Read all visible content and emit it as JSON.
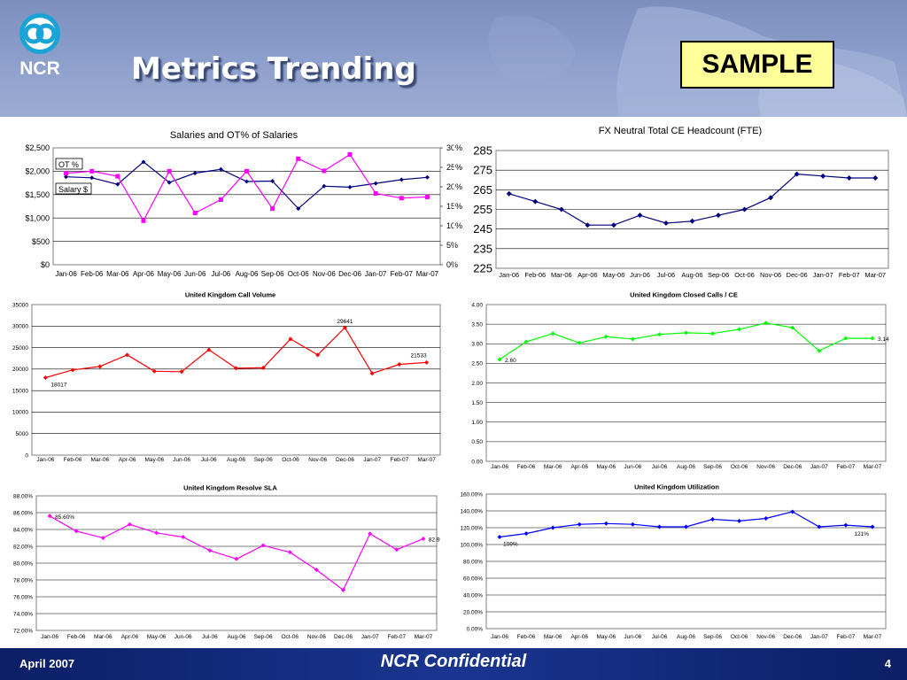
{
  "slide": {
    "title": "Metrics Trending",
    "stamp": "SAMPLE",
    "logo_text": "NCR",
    "footer_left": "April 2007",
    "footer_center": "NCR Confidential",
    "page_number": "4"
  },
  "colors": {
    "navy": "#000080",
    "magenta": "#ff00ff",
    "red": "#ff0000",
    "green": "#00ff00",
    "blue": "#0000ff",
    "footer": "#0c1f66"
  },
  "chart_data": [
    {
      "type": "line",
      "title": "Salaries and OT% of Salaries",
      "categories": [
        "Jan-06",
        "Feb-06",
        "Mar-06",
        "Apr-06",
        "May-06",
        "Jun-06",
        "Jul-06",
        "Aug-06",
        "Sep-06",
        "Oct-06",
        "Nov-06",
        "Dec-06",
        "Jan-07",
        "Feb-07",
        "Mar-07"
      ],
      "ylim": [
        0,
        2500
      ],
      "y2lim": [
        0,
        30
      ],
      "y_ticks": [
        "$0",
        "$500",
        "$1,000",
        "$1,500",
        "$2,000",
        "$2,500"
      ],
      "y2_ticks": [
        "0%",
        "5%",
        "10%",
        "15%",
        "20%",
        "25%",
        "30%"
      ],
      "grid": true,
      "series": [
        {
          "name": "Salary $",
          "axis": "left",
          "color": "#000080",
          "marker": "diamond",
          "values": [
            1880,
            1860,
            1720,
            2200,
            1760,
            1960,
            2040,
            1780,
            1790,
            1200,
            1680,
            1660,
            1740,
            1820,
            1870
          ]
        },
        {
          "name": "OT %",
          "axis": "right",
          "color": "#ff00ff",
          "marker": "square",
          "values": [
            23.5,
            24,
            22.7,
            11.3,
            24,
            13.3,
            16.7,
            24.0,
            14.4,
            27.2,
            24.1,
            28.3,
            18.3,
            17.1,
            17.4
          ]
        }
      ]
    },
    {
      "type": "line",
      "title": "FX Neutral Total CE Headcount (FTE)",
      "categories": [
        "Jan-06",
        "Feb-06",
        "Mar-06",
        "Apr-06",
        "May-06",
        "Jun-06",
        "Jul-06",
        "Aug-06",
        "Sep-06",
        "Oct-06",
        "Nov-06",
        "Dec-06",
        "Jan-07",
        "Feb-07",
        "Mar-07"
      ],
      "ylim": [
        225,
        285
      ],
      "y_ticks": [
        "225",
        "235",
        "245",
        "255",
        "265",
        "275",
        "285"
      ],
      "grid": true,
      "series": [
        {
          "color": "#000080",
          "marker": "diamond",
          "values": [
            263,
            259,
            255,
            247,
            247,
            252,
            248,
            249,
            252,
            255,
            261,
            273,
            272,
            271,
            271
          ]
        }
      ]
    },
    {
      "type": "line",
      "title": "United Kingdom Call Volume",
      "categories": [
        "Jan-06",
        "Feb-06",
        "Mar-06",
        "Apr-06",
        "May-06",
        "Jun-06",
        "Jul-06",
        "Aug-06",
        "Sep-06",
        "Oct-06",
        "Nov-06",
        "Dec-06",
        "Jan-07",
        "Feb-07",
        "Mar-07"
      ],
      "ylim": [
        0,
        35000
      ],
      "y_ticks": [
        "0",
        "5000",
        "10000",
        "15000",
        "20000",
        "25000",
        "30000",
        "35000"
      ],
      "grid": true,
      "data_labels": [
        "18017",
        "29641",
        "21533"
      ],
      "series": [
        {
          "color": "#ff0000",
          "marker": "diamond",
          "values": [
            18017,
            19800,
            20600,
            23300,
            19500,
            19400,
            24500,
            20200,
            20300,
            27000,
            23300,
            29641,
            19000,
            21100,
            21533
          ]
        }
      ]
    },
    {
      "type": "line",
      "title": "United Kingdom Closed Calls / CE",
      "categories": [
        "Jan-06",
        "Feb-06",
        "Mar-06",
        "Apr-06",
        "May-06",
        "Jun-06",
        "Jul-06",
        "Aug-06",
        "Sep-06",
        "Oct-06",
        "Nov-06",
        "Dec-06",
        "Jan-07",
        "Feb-07",
        "Mar-07"
      ],
      "ylim": [
        0,
        4
      ],
      "y_ticks": [
        "0.00",
        "0.50",
        "1.00",
        "1.50",
        "2.00",
        "2.50",
        "3.00",
        "3.50",
        "4.00"
      ],
      "grid": true,
      "data_labels": [
        "2.60",
        "3.14"
      ],
      "series": [
        {
          "color": "#00ff00",
          "marker": "diamond",
          "values": [
            2.6,
            3.05,
            3.26,
            3.02,
            3.18,
            3.12,
            3.24,
            3.28,
            3.26,
            3.37,
            3.53,
            3.41,
            2.82,
            3.14,
            3.14
          ]
        }
      ]
    },
    {
      "type": "line",
      "title": "United Kingdom Resolve SLA",
      "categories": [
        "Jan-06",
        "Feb-06",
        "Mar-06",
        "Apr-06",
        "May-06",
        "Jun-06",
        "Jul-06",
        "Aug-06",
        "Sep-06",
        "Oct-06",
        "Nov-06",
        "Dec-06",
        "Jan-07",
        "Feb-07",
        "Mar-07"
      ],
      "ylim": [
        72,
        88
      ],
      "y_ticks": [
        "72.00%",
        "74.00%",
        "76.00%",
        "78.00%",
        "80.00%",
        "82.00%",
        "84.00%",
        "86.00%",
        "88.00%"
      ],
      "grid": true,
      "data_labels": [
        "85.60%",
        "82.9"
      ],
      "series": [
        {
          "color": "#ff00ff",
          "marker": "diamond",
          "values": [
            85.6,
            83.8,
            83.0,
            84.6,
            83.6,
            83.1,
            81.5,
            80.5,
            82.1,
            81.3,
            79.2,
            76.8,
            83.5,
            81.6,
            82.9
          ]
        }
      ]
    },
    {
      "type": "line",
      "title": "United Kingdom Utilization",
      "categories": [
        "Jan-06",
        "Feb-06",
        "Mar-06",
        "Apr-06",
        "May-06",
        "Jun-06",
        "Jul-06",
        "Aug-06",
        "Sep-06",
        "Oct-06",
        "Nov-06",
        "Dec-06",
        "Jan-07",
        "Feb-07",
        "Mar-07"
      ],
      "ylim": [
        0,
        160
      ],
      "y_ticks": [
        "0.00%",
        "20.00%",
        "40.00%",
        "60.00%",
        "80.00%",
        "100.00%",
        "120.00%",
        "140.00%",
        "160.00%"
      ],
      "grid": true,
      "data_labels": [
        "109%",
        "121%"
      ],
      "series": [
        {
          "color": "#0000ff",
          "marker": "diamond",
          "values": [
            109,
            113,
            120,
            124,
            125,
            124,
            121,
            121,
            130,
            128,
            131,
            139,
            121,
            123,
            121
          ]
        }
      ]
    }
  ]
}
